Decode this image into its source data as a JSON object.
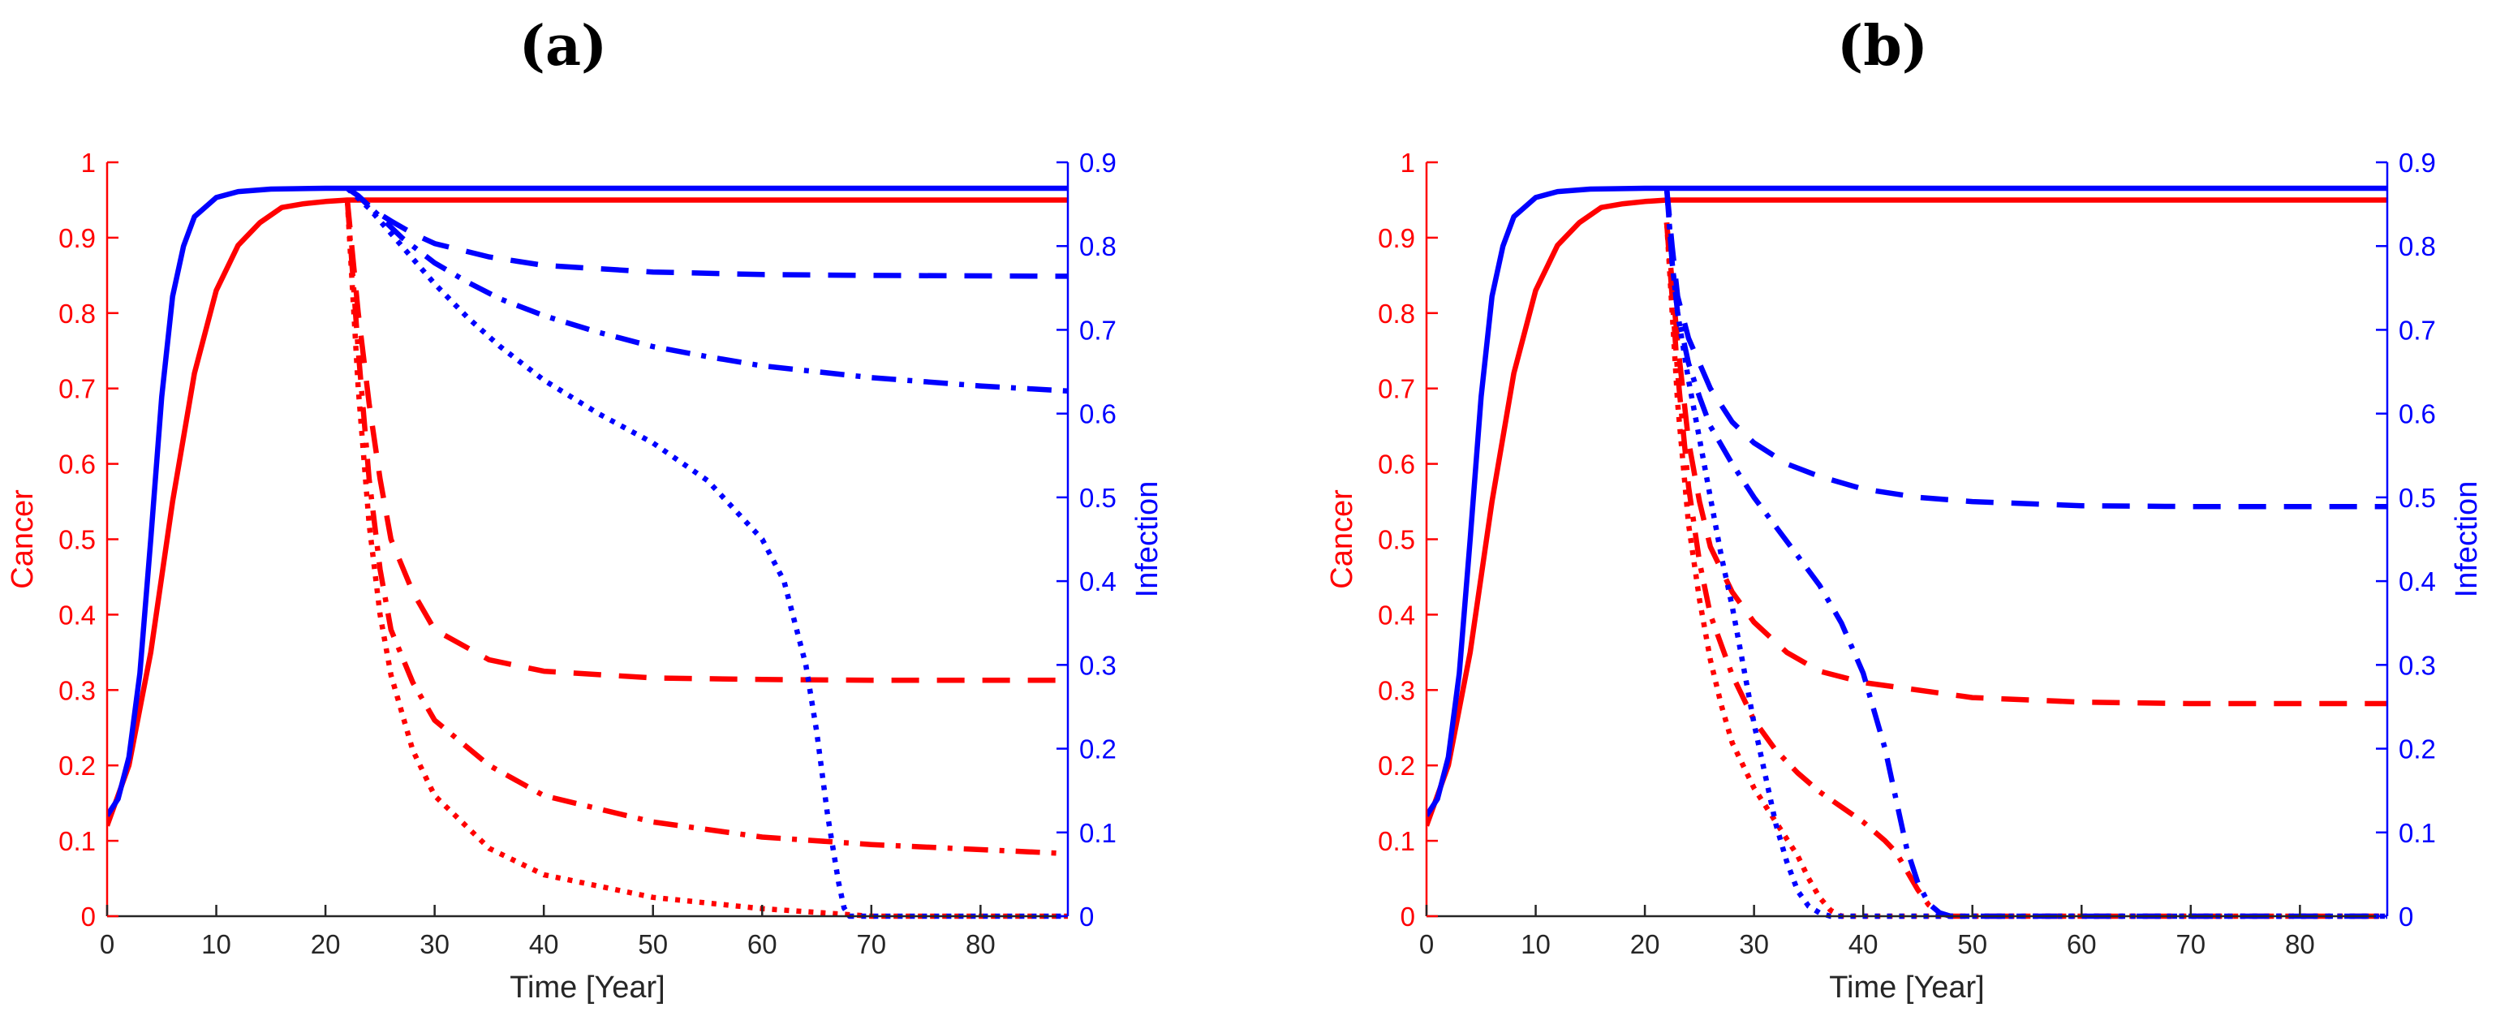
{
  "colors": {
    "cancer": "#ff0000",
    "infection": "#0000ff",
    "axis": "#262626"
  },
  "chart_data": [
    {
      "type": "line",
      "panel_label": "(a)",
      "xlabel": "Time [Year]",
      "ylabel_left": "Cancer",
      "ylabel_right": "Infection",
      "xlim": [
        0,
        88
      ],
      "ylim_left": [
        0,
        1
      ],
      "ylim_right": [
        0,
        0.9
      ],
      "xticks": [
        "0",
        "10",
        "20",
        "30",
        "40",
        "50",
        "60",
        "70",
        "80"
      ],
      "yticks_left": [
        "0",
        "0.1",
        "0.2",
        "0.3",
        "0.4",
        "0.5",
        "0.6",
        "0.7",
        "0.8",
        "0.9",
        "1"
      ],
      "yticks_right": [
        "0",
        "0.1",
        "0.2",
        "0.3",
        "0.4",
        "0.5",
        "0.6",
        "0.7",
        "0.8",
        "0.9"
      ],
      "grid": false,
      "series": [
        {
          "axis": "left",
          "style": "solid",
          "x": [
            0,
            2,
            4,
            6,
            8,
            10,
            12,
            14,
            16,
            18,
            20,
            22,
            40,
            60,
            88
          ],
          "y": [
            0.12,
            0.2,
            0.35,
            0.55,
            0.72,
            0.83,
            0.89,
            0.92,
            0.94,
            0.945,
            0.948,
            0.95,
            0.95,
            0.95,
            0.95
          ]
        },
        {
          "axis": "left",
          "style": "dashed",
          "x": [
            22,
            23,
            24,
            25,
            26,
            28,
            30,
            35,
            40,
            50,
            60,
            70,
            88
          ],
          "y": [
            0.95,
            0.8,
            0.68,
            0.58,
            0.5,
            0.43,
            0.38,
            0.34,
            0.325,
            0.316,
            0.314,
            0.313,
            0.313
          ]
        },
        {
          "axis": "left",
          "style": "dashdot",
          "x": [
            22,
            23,
            24,
            25,
            26,
            28,
            30,
            35,
            40,
            50,
            60,
            70,
            88
          ],
          "y": [
            0.95,
            0.75,
            0.58,
            0.46,
            0.38,
            0.31,
            0.26,
            0.2,
            0.16,
            0.125,
            0.105,
            0.095,
            0.083
          ]
        },
        {
          "axis": "left",
          "style": "dotted",
          "x": [
            22,
            23,
            24,
            25,
            26,
            28,
            30,
            35,
            40,
            50,
            60,
            68,
            70,
            88
          ],
          "y": [
            0.95,
            0.7,
            0.52,
            0.4,
            0.32,
            0.22,
            0.16,
            0.09,
            0.055,
            0.025,
            0.01,
            0.002,
            0,
            0
          ]
        },
        {
          "axis": "right",
          "style": "solid",
          "x": [
            0,
            1,
            2,
            3,
            4,
            5,
            6,
            7,
            8,
            10,
            12,
            15,
            20,
            88
          ],
          "y": [
            0.12,
            0.14,
            0.19,
            0.29,
            0.45,
            0.62,
            0.74,
            0.8,
            0.835,
            0.858,
            0.865,
            0.868,
            0.869,
            0.869
          ]
        },
        {
          "axis": "right",
          "style": "dashed",
          "x": [
            22,
            23,
            24,
            25,
            26,
            28,
            30,
            35,
            40,
            50,
            60,
            70,
            88
          ],
          "y": [
            0.869,
            0.86,
            0.848,
            0.838,
            0.83,
            0.815,
            0.803,
            0.787,
            0.777,
            0.769,
            0.766,
            0.765,
            0.764
          ]
        },
        {
          "axis": "right",
          "style": "dashdot",
          "x": [
            22,
            23,
            25,
            27,
            30,
            33,
            36,
            40,
            45,
            50,
            55,
            60,
            70,
            80,
            88
          ],
          "y": [
            0.869,
            0.86,
            0.835,
            0.81,
            0.78,
            0.757,
            0.737,
            0.717,
            0.697,
            0.68,
            0.668,
            0.657,
            0.643,
            0.633,
            0.627
          ]
        },
        {
          "axis": "right",
          "style": "dotted",
          "x": [
            22,
            24,
            26,
            28,
            30,
            33,
            36,
            40,
            45,
            50,
            55,
            60,
            62,
            64,
            65,
            66,
            67,
            67.5,
            68,
            70,
            88
          ],
          "y": [
            0.869,
            0.845,
            0.815,
            0.785,
            0.755,
            0.715,
            0.68,
            0.64,
            0.6,
            0.565,
            0.52,
            0.45,
            0.4,
            0.3,
            0.22,
            0.12,
            0.04,
            0.01,
            0,
            0,
            0
          ]
        }
      ]
    },
    {
      "type": "line",
      "panel_label": "(b)",
      "xlabel": "Time [Year]",
      "ylabel_left": "Cancer",
      "ylabel_right": "Infection",
      "xlim": [
        0,
        88
      ],
      "ylim_left": [
        0,
        1
      ],
      "ylim_right": [
        0,
        0.9
      ],
      "xticks": [
        "0",
        "10",
        "20",
        "30",
        "40",
        "50",
        "60",
        "70",
        "80"
      ],
      "yticks_left": [
        "0",
        "0.1",
        "0.2",
        "0.3",
        "0.4",
        "0.5",
        "0.6",
        "0.7",
        "0.8",
        "0.9",
        "1"
      ],
      "yticks_right": [
        "0",
        "0.1",
        "0.2",
        "0.3",
        "0.4",
        "0.5",
        "0.6",
        "0.7",
        "0.8",
        "0.9"
      ],
      "grid": false,
      "series": [
        {
          "axis": "left",
          "style": "solid",
          "x": [
            0,
            2,
            4,
            6,
            8,
            10,
            12,
            14,
            16,
            18,
            20,
            22,
            40,
            60,
            88
          ],
          "y": [
            0.12,
            0.2,
            0.35,
            0.55,
            0.72,
            0.83,
            0.89,
            0.92,
            0.94,
            0.945,
            0.948,
            0.95,
            0.95,
            0.95,
            0.95
          ]
        },
        {
          "axis": "left",
          "style": "dashed",
          "x": [
            22,
            23,
            24,
            25,
            26,
            28,
            30,
            33,
            36,
            40,
            50,
            60,
            70,
            88
          ],
          "y": [
            0.92,
            0.76,
            0.63,
            0.55,
            0.49,
            0.43,
            0.39,
            0.35,
            0.325,
            0.31,
            0.29,
            0.284,
            0.282,
            0.282
          ]
        },
        {
          "axis": "left",
          "style": "dashdot",
          "x": [
            22,
            23,
            24,
            25,
            26,
            28,
            30,
            32,
            34,
            36,
            38,
            40,
            42,
            43,
            44,
            45,
            46,
            47,
            48,
            88
          ],
          "y": [
            0.92,
            0.72,
            0.57,
            0.47,
            0.4,
            0.32,
            0.26,
            0.22,
            0.19,
            0.165,
            0.145,
            0.125,
            0.1,
            0.085,
            0.06,
            0.035,
            0.015,
            0.004,
            0,
            0
          ]
        },
        {
          "axis": "left",
          "style": "dotted",
          "x": [
            22,
            23,
            24,
            25,
            26,
            27,
            28,
            30,
            32,
            34,
            35,
            36,
            37,
            38,
            40,
            88
          ],
          "y": [
            0.92,
            0.68,
            0.52,
            0.42,
            0.34,
            0.28,
            0.23,
            0.17,
            0.125,
            0.08,
            0.05,
            0.025,
            0.008,
            0,
            0,
            0
          ]
        },
        {
          "axis": "right",
          "style": "solid",
          "x": [
            0,
            1,
            2,
            3,
            4,
            5,
            6,
            7,
            8,
            10,
            12,
            15,
            20,
            88
          ],
          "y": [
            0.12,
            0.14,
            0.19,
            0.29,
            0.45,
            0.62,
            0.74,
            0.8,
            0.835,
            0.858,
            0.865,
            0.868,
            0.869,
            0.869
          ]
        },
        {
          "axis": "right",
          "style": "dashed",
          "x": [
            22,
            22.5,
            23,
            24,
            25,
            26,
            28,
            30,
            33,
            36,
            40,
            45,
            50,
            60,
            70,
            80,
            88
          ],
          "y": [
            0.869,
            0.8,
            0.74,
            0.69,
            0.66,
            0.63,
            0.59,
            0.565,
            0.54,
            0.525,
            0.51,
            0.5,
            0.495,
            0.49,
            0.489,
            0.489,
            0.489
          ]
        },
        {
          "axis": "right",
          "style": "dashdot",
          "x": [
            22,
            22.5,
            23,
            24,
            25,
            26,
            28,
            30,
            32,
            34,
            36,
            38,
            40,
            42,
            43,
            44,
            45,
            46,
            47,
            48,
            88
          ],
          "y": [
            0.869,
            0.78,
            0.72,
            0.66,
            0.62,
            0.585,
            0.54,
            0.5,
            0.465,
            0.43,
            0.395,
            0.35,
            0.29,
            0.2,
            0.14,
            0.08,
            0.04,
            0.015,
            0.004,
            0,
            0
          ]
        },
        {
          "axis": "right",
          "style": "dotted",
          "x": [
            22,
            22.5,
            23,
            24,
            25,
            26,
            27,
            28,
            29,
            30,
            31,
            32,
            33,
            34,
            35,
            36,
            37,
            38,
            88
          ],
          "y": [
            0.869,
            0.78,
            0.72,
            0.64,
            0.57,
            0.5,
            0.43,
            0.37,
            0.3,
            0.23,
            0.17,
            0.11,
            0.065,
            0.03,
            0.012,
            0.004,
            0,
            0,
            0
          ]
        }
      ]
    }
  ]
}
